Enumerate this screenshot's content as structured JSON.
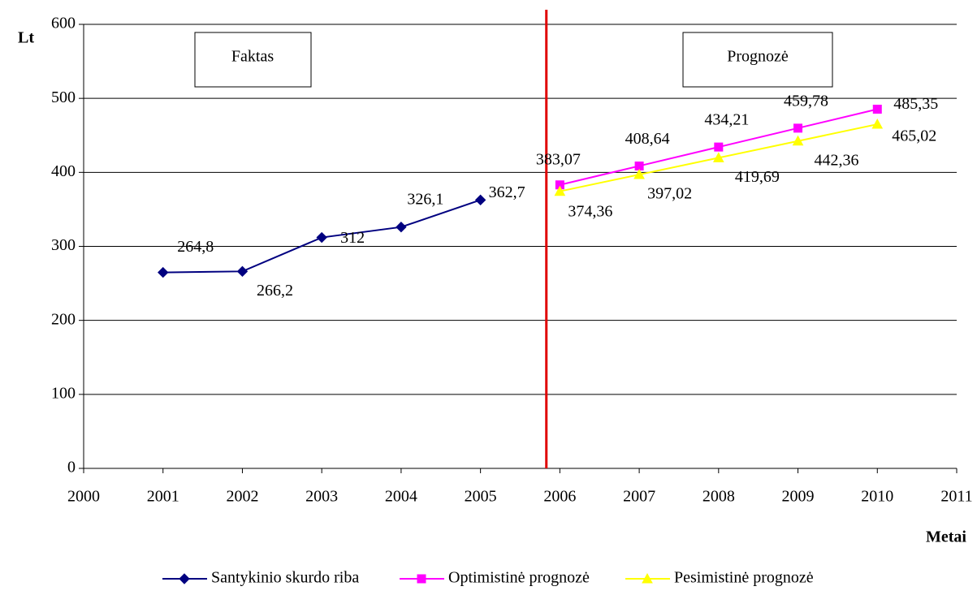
{
  "chart_data": {
    "type": "line",
    "ylabel": "Lt",
    "xlabel": "Metai",
    "annotations": [
      "Faktas",
      "Prognozė"
    ],
    "xlim": [
      2000,
      2011
    ],
    "xticks": [
      2000,
      2001,
      2002,
      2003,
      2004,
      2005,
      2006,
      2007,
      2008,
      2009,
      2010,
      2011
    ],
    "ylim": [
      0,
      600
    ],
    "yticks": [
      0,
      100,
      200,
      300,
      400,
      500,
      600
    ],
    "grid": true,
    "legend": "bottom",
    "series": [
      {
        "name": "Santykinio skurdo riba",
        "color": "#000080",
        "marker": "diamond",
        "x": [
          2001,
          2002,
          2003,
          2004,
          2005
        ],
        "values": [
          264.8,
          266.2,
          312,
          326.1,
          362.7
        ],
        "value_labels": [
          "264,8",
          "266,2",
          "312",
          "326,1",
          "362,7"
        ]
      },
      {
        "name": "Optimistinė prognozė",
        "color": "#ff00ff",
        "marker": "square",
        "x": [
          2006,
          2007,
          2008,
          2009,
          2010
        ],
        "values": [
          383.07,
          408.64,
          434.21,
          459.78,
          485.35
        ],
        "value_labels": [
          "383,07",
          "408,64",
          "434,21",
          "459,78",
          "485,35"
        ]
      },
      {
        "name": "Pesimistinė prognozė",
        "color": "#ffff00",
        "marker": "triangle",
        "x": [
          2006,
          2007,
          2008,
          2009,
          2010
        ],
        "values": [
          374.36,
          397.02,
          419.69,
          442.36,
          465.02
        ],
        "value_labels": [
          "374,36",
          "397,02",
          "419,69",
          "442,36",
          "465,02"
        ]
      }
    ]
  }
}
